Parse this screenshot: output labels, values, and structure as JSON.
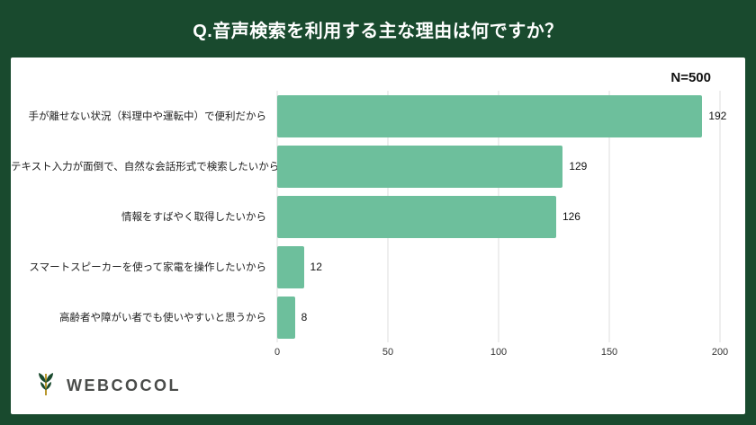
{
  "header": {
    "title": "Q.音声検索を利用する主な理由は何ですか？"
  },
  "sample_label": "N=500",
  "chart_data": {
    "type": "bar",
    "orientation": "horizontal",
    "title": "Q.音声検索を利用する主な理由は何ですか？",
    "categories": [
      "手が離せない状況（料理中や運転中）で便利だから",
      "テキスト入力が面倒で、自然な会話形式で検索したいから",
      "情報をすばやく取得したいから",
      "スマートスピーカーを使って家電を操作したいから",
      "高齢者や障がい者でも使いやすいと思うから"
    ],
    "values": [
      192,
      129,
      126,
      12,
      8
    ],
    "xlim": [
      0,
      200
    ],
    "xticks": [
      0,
      50,
      100,
      150,
      200
    ],
    "grid": true,
    "legend": "none",
    "sample_size": "N=500"
  },
  "footer": {
    "logo_text": "WEBCOCOL"
  },
  "colors": {
    "background": "#194a2e",
    "panel": "#ffffff",
    "bar": "#6dbf9c",
    "gridline": "#dcdcdc"
  }
}
